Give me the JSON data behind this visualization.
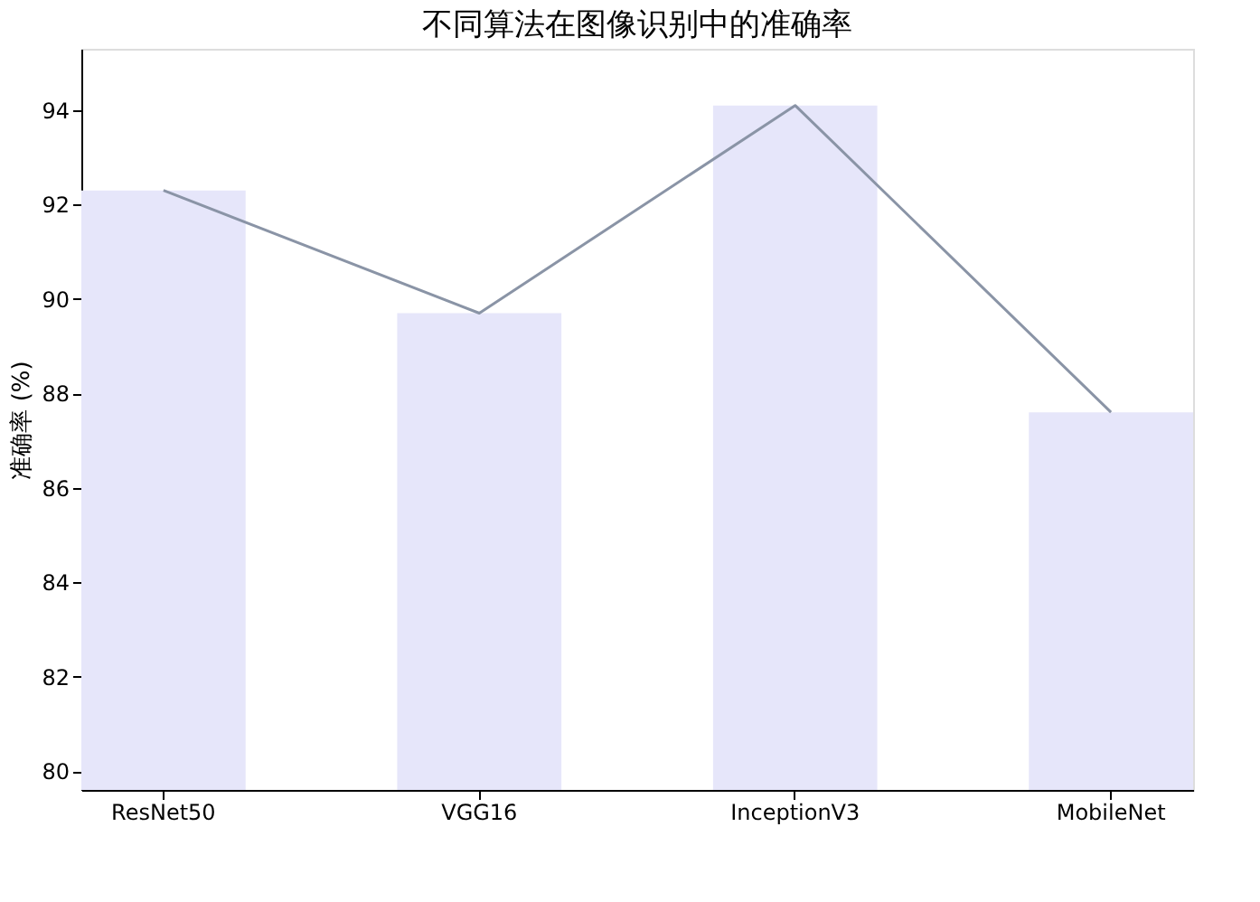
{
  "chart_data": {
    "type": "bar",
    "title": "不同算法在图像识别中的准确率",
    "ylabel": "准确率 (%)",
    "categories": [
      "ResNet50",
      "VGG16",
      "InceptionV3",
      "MobileNet"
    ],
    "series": [
      {
        "color": "#e6e6fa",
        "values": [
          92.3,
          89.7,
          94.1,
          87.6
        ]
      },
      {
        "type": "line",
        "color": "#8a94a6",
        "values": [
          92.3,
          89.7,
          94.1,
          87.6
        ]
      }
    ],
    "ylim": [
      79.6,
      95.3
    ],
    "yticks": [
      80,
      82,
      84,
      86,
      88,
      90,
      92,
      94
    ],
    "grid": false,
    "marker": "none",
    "line_style": "solid"
  }
}
